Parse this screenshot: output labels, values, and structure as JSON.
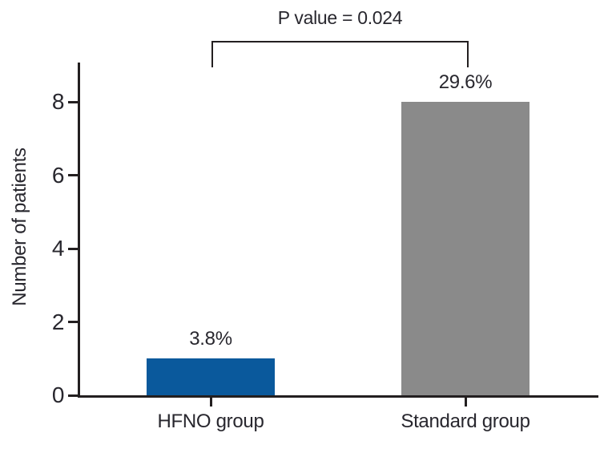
{
  "chart_data": {
    "type": "bar",
    "title": "",
    "ylabel": "Number of patients",
    "xlabel": "",
    "categories": [
      "HFNO group",
      "Standard group"
    ],
    "values": [
      1,
      8
    ],
    "bar_labels": [
      "3.8%",
      "29.6%"
    ],
    "bar_colors": [
      "#0a599c",
      "#8a8a8a"
    ],
    "yticks": [
      0,
      2,
      4,
      6,
      8
    ],
    "ylim": [
      0,
      9
    ],
    "grid": false,
    "legend": "none",
    "annotation": {
      "text": "P value = 0.024",
      "connects": [
        "HFNO group",
        "Standard group"
      ]
    },
    "colors": {
      "axis": "#231f20",
      "text": "#28272e",
      "background": "#ffffff"
    }
  }
}
